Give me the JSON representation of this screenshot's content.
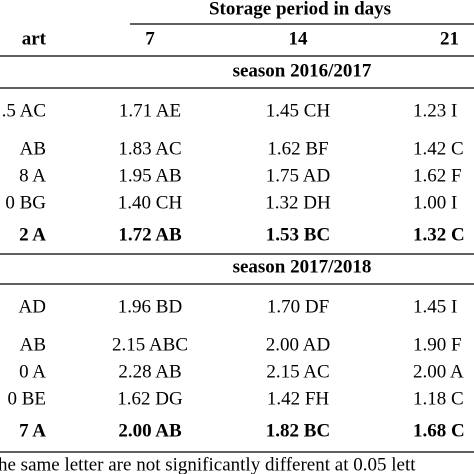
{
  "header": {
    "title": "Storage period in days",
    "columns": [
      "art",
      "7",
      "14",
      "21"
    ]
  },
  "sections": [
    {
      "title": "season  2016/2017",
      "rows": [
        [
          ".5 AC",
          "1.71 AE",
          "1.45 CH",
          "1.23 I"
        ],
        [
          "AB",
          "1.83 AC",
          "1.62 BF",
          "1.42 C"
        ],
        [
          "8 A",
          "1.95 AB",
          "1.75 AD",
          "1.62 F"
        ],
        [
          "0 BG",
          "1.40 CH",
          "1.32 DH",
          "1.00 I"
        ],
        [
          "2 A",
          "1.72 AB",
          "1.53 BC",
          "1.32 C"
        ]
      ]
    },
    {
      "title": "season 2017/2018",
      "rows": [
        [
          "AD",
          "1.96 BD",
          "1.70 DF",
          "1.45 I"
        ],
        [
          "AB",
          "2.15 ABC",
          "2.00 AD",
          "1.90 F"
        ],
        [
          "0 A",
          "2.28 AB",
          "2.15 AC",
          "2.00 A"
        ],
        [
          "0 BE",
          "1.62 DG",
          "1.42 FH",
          "1.18 C"
        ],
        [
          "7 A",
          "2.00 AB",
          "1.82 BC",
          "1.68 C"
        ]
      ]
    }
  ],
  "footnote": "he same letter are not significantly different at 0.05 lett"
}
